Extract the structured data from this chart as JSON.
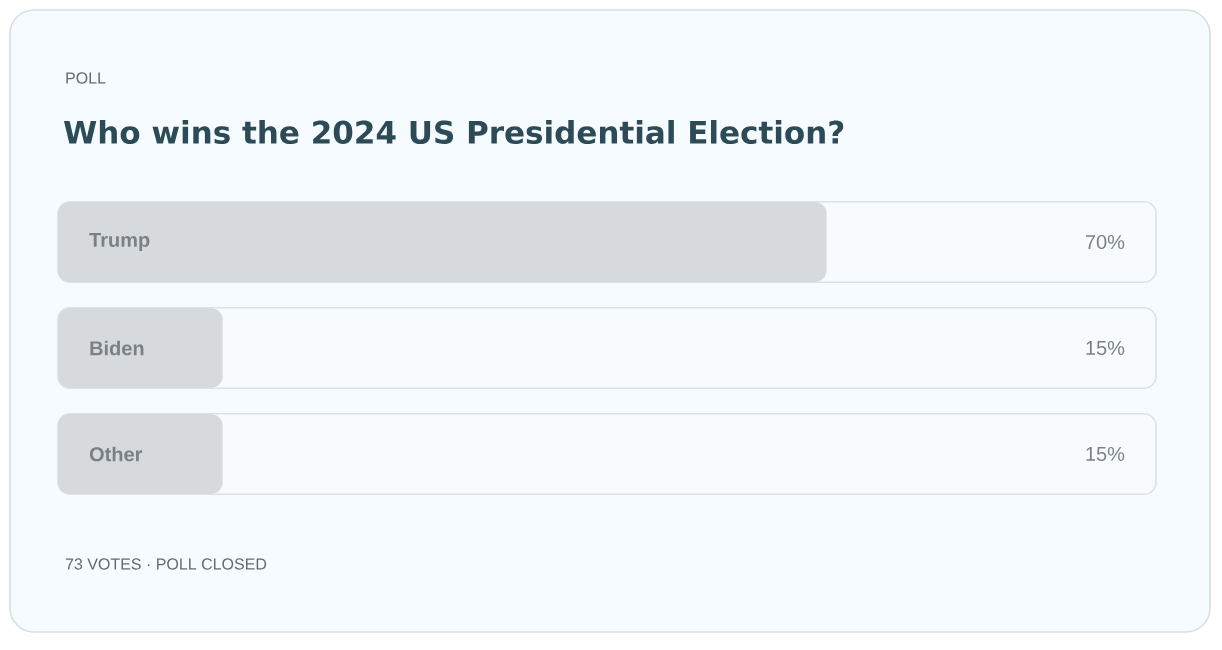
{
  "chart_data": {
    "type": "bar",
    "orientation": "horizontal",
    "title": "Who wins the 2024 US Presidential Election?",
    "annotations": [
      "POLL",
      "73 VOTES · POLL CLOSED"
    ],
    "categories": [
      "Trump",
      "Biden",
      "Other"
    ],
    "values": [
      70,
      15,
      15
    ],
    "value_labels": [
      "70%",
      "15%",
      "15%"
    ],
    "color": "#d6dadd",
    "xlim": [
      0,
      100
    ]
  }
}
